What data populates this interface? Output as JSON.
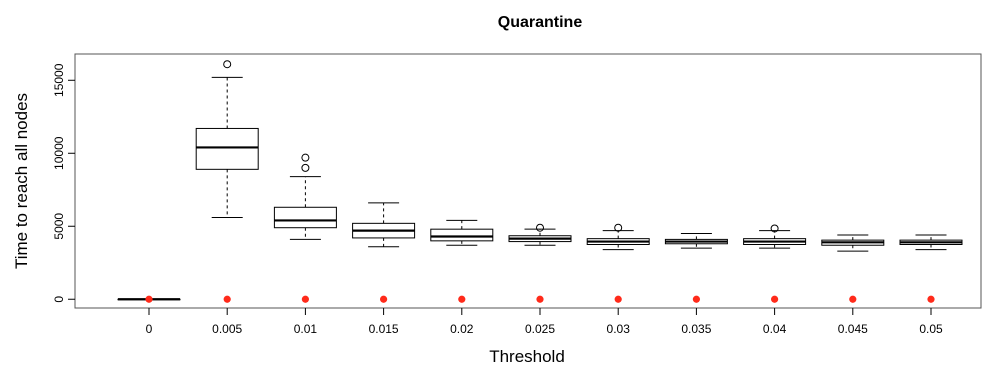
{
  "chart_data": {
    "type": "box",
    "title": "Quarantine",
    "xlabel": "Threshold",
    "ylabel": "Time to reach all nodes",
    "categories": [
      "0",
      "0.005",
      "0.01",
      "0.015",
      "0.02",
      "0.025",
      "0.03",
      "0.035",
      "0.04",
      "0.045",
      "0.05"
    ],
    "ylim": [
      -600,
      16800
    ],
    "yticks": [
      0,
      5000,
      10000,
      15000
    ],
    "boxes": [
      {
        "min": 0,
        "q1": 0,
        "median": 0,
        "q3": 0,
        "max": 0,
        "outliers": []
      },
      {
        "min": 5600,
        "q1": 8900,
        "median": 10400,
        "q3": 11700,
        "max": 15200,
        "outliers": [
          16100
        ]
      },
      {
        "min": 4100,
        "q1": 4900,
        "median": 5400,
        "q3": 6300,
        "max": 8400,
        "outliers": [
          9000,
          9700
        ]
      },
      {
        "min": 3600,
        "q1": 4200,
        "median": 4700,
        "q3": 5200,
        "max": 6600,
        "outliers": []
      },
      {
        "min": 3700,
        "q1": 4000,
        "median": 4300,
        "q3": 4800,
        "max": 5400,
        "outliers": []
      },
      {
        "min": 3700,
        "q1": 3950,
        "median": 4150,
        "q3": 4350,
        "max": 4800,
        "outliers": [
          4900
        ]
      },
      {
        "min": 3400,
        "q1": 3750,
        "median": 3950,
        "q3": 4150,
        "max": 4700,
        "outliers": [
          4900
        ]
      },
      {
        "min": 3500,
        "q1": 3800,
        "median": 3950,
        "q3": 4100,
        "max": 4500,
        "outliers": []
      },
      {
        "min": 3500,
        "q1": 3750,
        "median": 3950,
        "q3": 4150,
        "max": 4700,
        "outliers": [
          4850
        ]
      },
      {
        "min": 3300,
        "q1": 3700,
        "median": 3900,
        "q3": 4050,
        "max": 4400,
        "outliers": []
      },
      {
        "min": 3400,
        "q1": 3750,
        "median": 3900,
        "q3": 4050,
        "max": 4400,
        "outliers": []
      }
    ],
    "points": {
      "color": "#ff2a1a",
      "values": [
        0,
        0,
        0,
        0,
        0,
        0,
        0,
        0,
        0,
        0,
        0
      ]
    },
    "grid": false,
    "legend": "none"
  }
}
